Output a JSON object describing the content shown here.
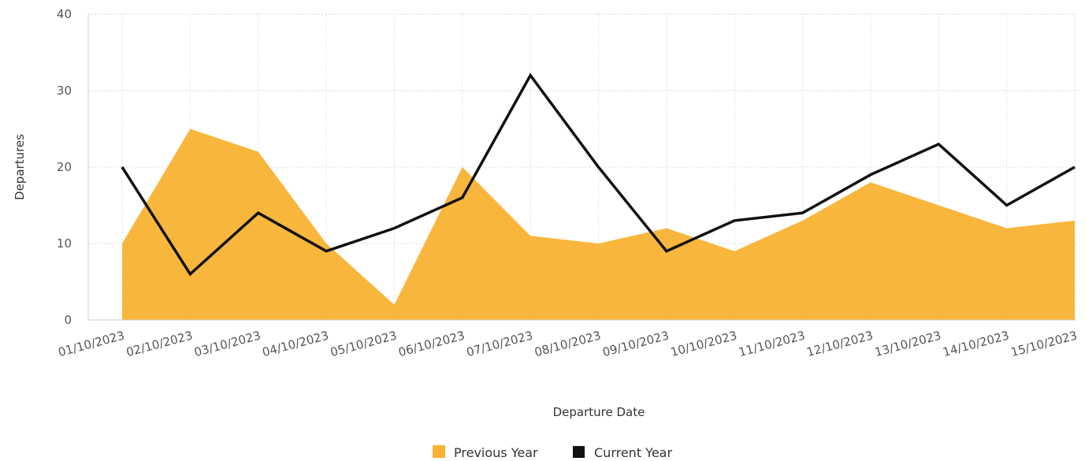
{
  "chart_data": {
    "type": "area",
    "title": "",
    "xlabel": "Departure Date",
    "ylabel": "Departures",
    "ylim": [
      0,
      40
    ],
    "yticks": [
      0,
      10,
      20,
      30,
      40
    ],
    "grid": true,
    "legend_position": "bottom-center",
    "categories": [
      "01/10/2023",
      "02/10/2023",
      "03/10/2023",
      "04/10/2023",
      "05/10/2023",
      "06/10/2023",
      "07/10/2023",
      "08/10/2023",
      "09/10/2023",
      "10/10/2023",
      "11/10/2023",
      "12/10/2023",
      "13/10/2023",
      "14/10/2023",
      "15/10/2023"
    ],
    "series": [
      {
        "name": "Previous Year",
        "kind": "area",
        "color": "#F9B233",
        "values": [
          10,
          25,
          22,
          10,
          2,
          20,
          11,
          10,
          12,
          9,
          13,
          18,
          15,
          12,
          13
        ]
      },
      {
        "name": "Current Year",
        "kind": "line",
        "color": "#111111",
        "values": [
          20,
          6,
          14,
          9,
          12,
          16,
          32,
          20,
          9,
          13,
          14,
          19,
          23,
          15,
          20
        ]
      }
    ]
  }
}
